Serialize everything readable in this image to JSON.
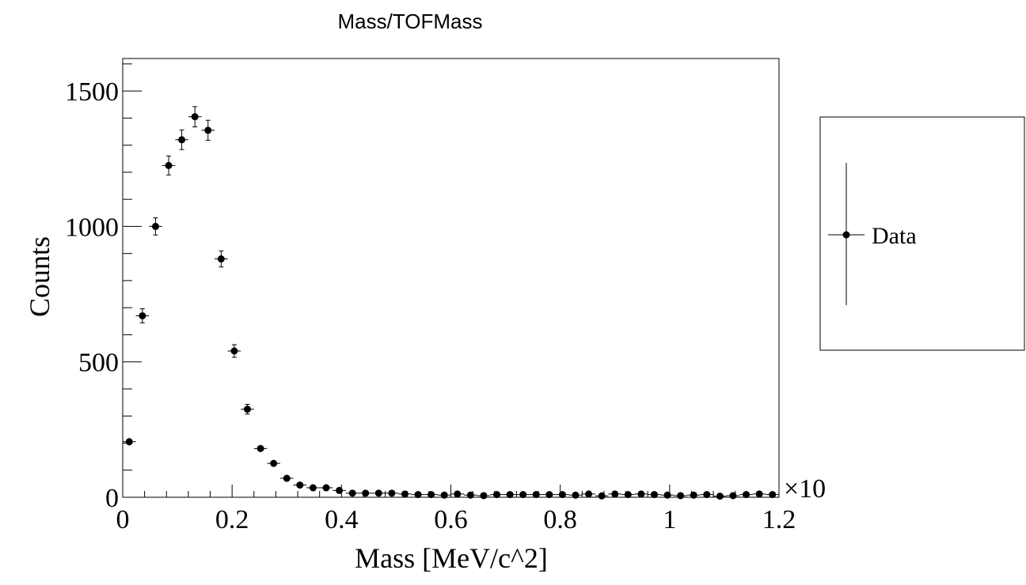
{
  "chart_data": {
    "type": "scatter",
    "title": "Mass/TOFMass",
    "xlabel": "Mass [MeV/c^2]",
    "ylabel": "Counts",
    "x_exponent_label": "×10",
    "xlim": [
      0,
      1.2
    ],
    "ylim": [
      0,
      1620
    ],
    "x_ticks": [
      "0",
      "0.2",
      "0.4",
      "0.6",
      "0.8",
      "1",
      "1.2"
    ],
    "y_ticks": [
      "0",
      "500",
      "1000",
      "1500"
    ],
    "x_tick_values": [
      0,
      0.2,
      0.4,
      0.6,
      0.8,
      1.0,
      1.2
    ],
    "y_tick_values": [
      0,
      500,
      1000,
      1500
    ],
    "bin_width": 0.024,
    "legend": {
      "entry": "Data",
      "placement": "right"
    },
    "series": [
      {
        "name": "Data",
        "x": [
          0.012,
          0.036,
          0.06,
          0.084,
          0.108,
          0.132,
          0.156,
          0.18,
          0.204,
          0.228,
          0.252,
          0.276,
          0.3,
          0.324,
          0.348,
          0.372,
          0.396,
          0.42,
          0.444,
          0.468,
          0.492,
          0.516,
          0.54,
          0.564,
          0.588,
          0.612,
          0.636,
          0.66,
          0.684,
          0.708,
          0.732,
          0.756,
          0.78,
          0.804,
          0.828,
          0.852,
          0.876,
          0.9,
          0.924,
          0.948,
          0.972,
          0.996,
          1.02,
          1.044,
          1.068,
          1.092,
          1.116,
          1.14,
          1.164,
          1.188
        ],
        "y": [
          205,
          670,
          1000,
          1225,
          1320,
          1405,
          1355,
          880,
          540,
          325,
          180,
          125,
          70,
          45,
          35,
          35,
          25,
          15,
          15,
          15,
          15,
          12,
          10,
          10,
          8,
          12,
          8,
          6,
          10,
          10,
          10,
          10,
          10,
          10,
          8,
          12,
          5,
          12,
          10,
          12,
          10,
          8,
          6,
          8,
          10,
          4,
          6,
          10,
          12,
          10
        ]
      }
    ]
  }
}
